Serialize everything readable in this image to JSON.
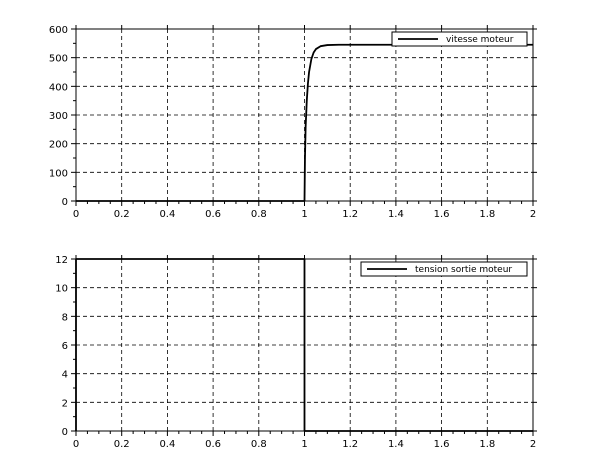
{
  "chart_data": [
    {
      "type": "line",
      "xlim": [
        0,
        2
      ],
      "ylim": [
        0,
        600
      ],
      "xticks": [
        0,
        0.2,
        0.4,
        0.6,
        0.8,
        1,
        1.2,
        1.4,
        1.6,
        1.8,
        2
      ],
      "yticks": [
        0,
        100,
        200,
        300,
        400,
        500,
        600
      ],
      "xtick_labels": [
        "0",
        "0.2",
        "0.4",
        "0.6",
        "0.8",
        "1",
        "1.2",
        "1.4",
        "1.6",
        "1.8",
        "2"
      ],
      "ytick_labels": [
        "0",
        "100",
        "200",
        "300",
        "400",
        "500",
        "600"
      ],
      "grid": true,
      "legend_position": "top-right",
      "series": [
        {
          "name": "vitesse moteur",
          "color": "#000000",
          "x": [
            0,
            1.0,
            1.002,
            1.005,
            1.01,
            1.015,
            1.02,
            1.03,
            1.04,
            1.05,
            1.07,
            1.1,
            1.15,
            1.2,
            1.3,
            1.5,
            2.0
          ],
          "y": [
            0,
            0,
            150,
            260,
            350,
            410,
            450,
            495,
            518,
            530,
            540,
            544,
            545,
            545,
            545,
            545,
            545
          ]
        }
      ]
    },
    {
      "type": "line",
      "xlim": [
        0,
        2
      ],
      "ylim": [
        0,
        12
      ],
      "xticks": [
        0,
        0.2,
        0.4,
        0.6,
        0.8,
        1,
        1.2,
        1.4,
        1.6,
        1.8,
        2
      ],
      "yticks": [
        0,
        2,
        4,
        6,
        8,
        10,
        12
      ],
      "xtick_labels": [
        "0",
        "0.2",
        "0.4",
        "0.6",
        "0.8",
        "1",
        "1.2",
        "1.4",
        "1.6",
        "1.8",
        "2"
      ],
      "ytick_labels": [
        "0",
        "2",
        "4",
        "6",
        "8",
        "10",
        "12"
      ],
      "grid": true,
      "legend_position": "top-right",
      "series": [
        {
          "name": "tension sortie moteur",
          "color": "#000000",
          "x": [
            0,
            0,
            1.0,
            1.0,
            2.0
          ],
          "y": [
            0,
            12,
            12,
            0,
            0
          ]
        }
      ]
    }
  ]
}
